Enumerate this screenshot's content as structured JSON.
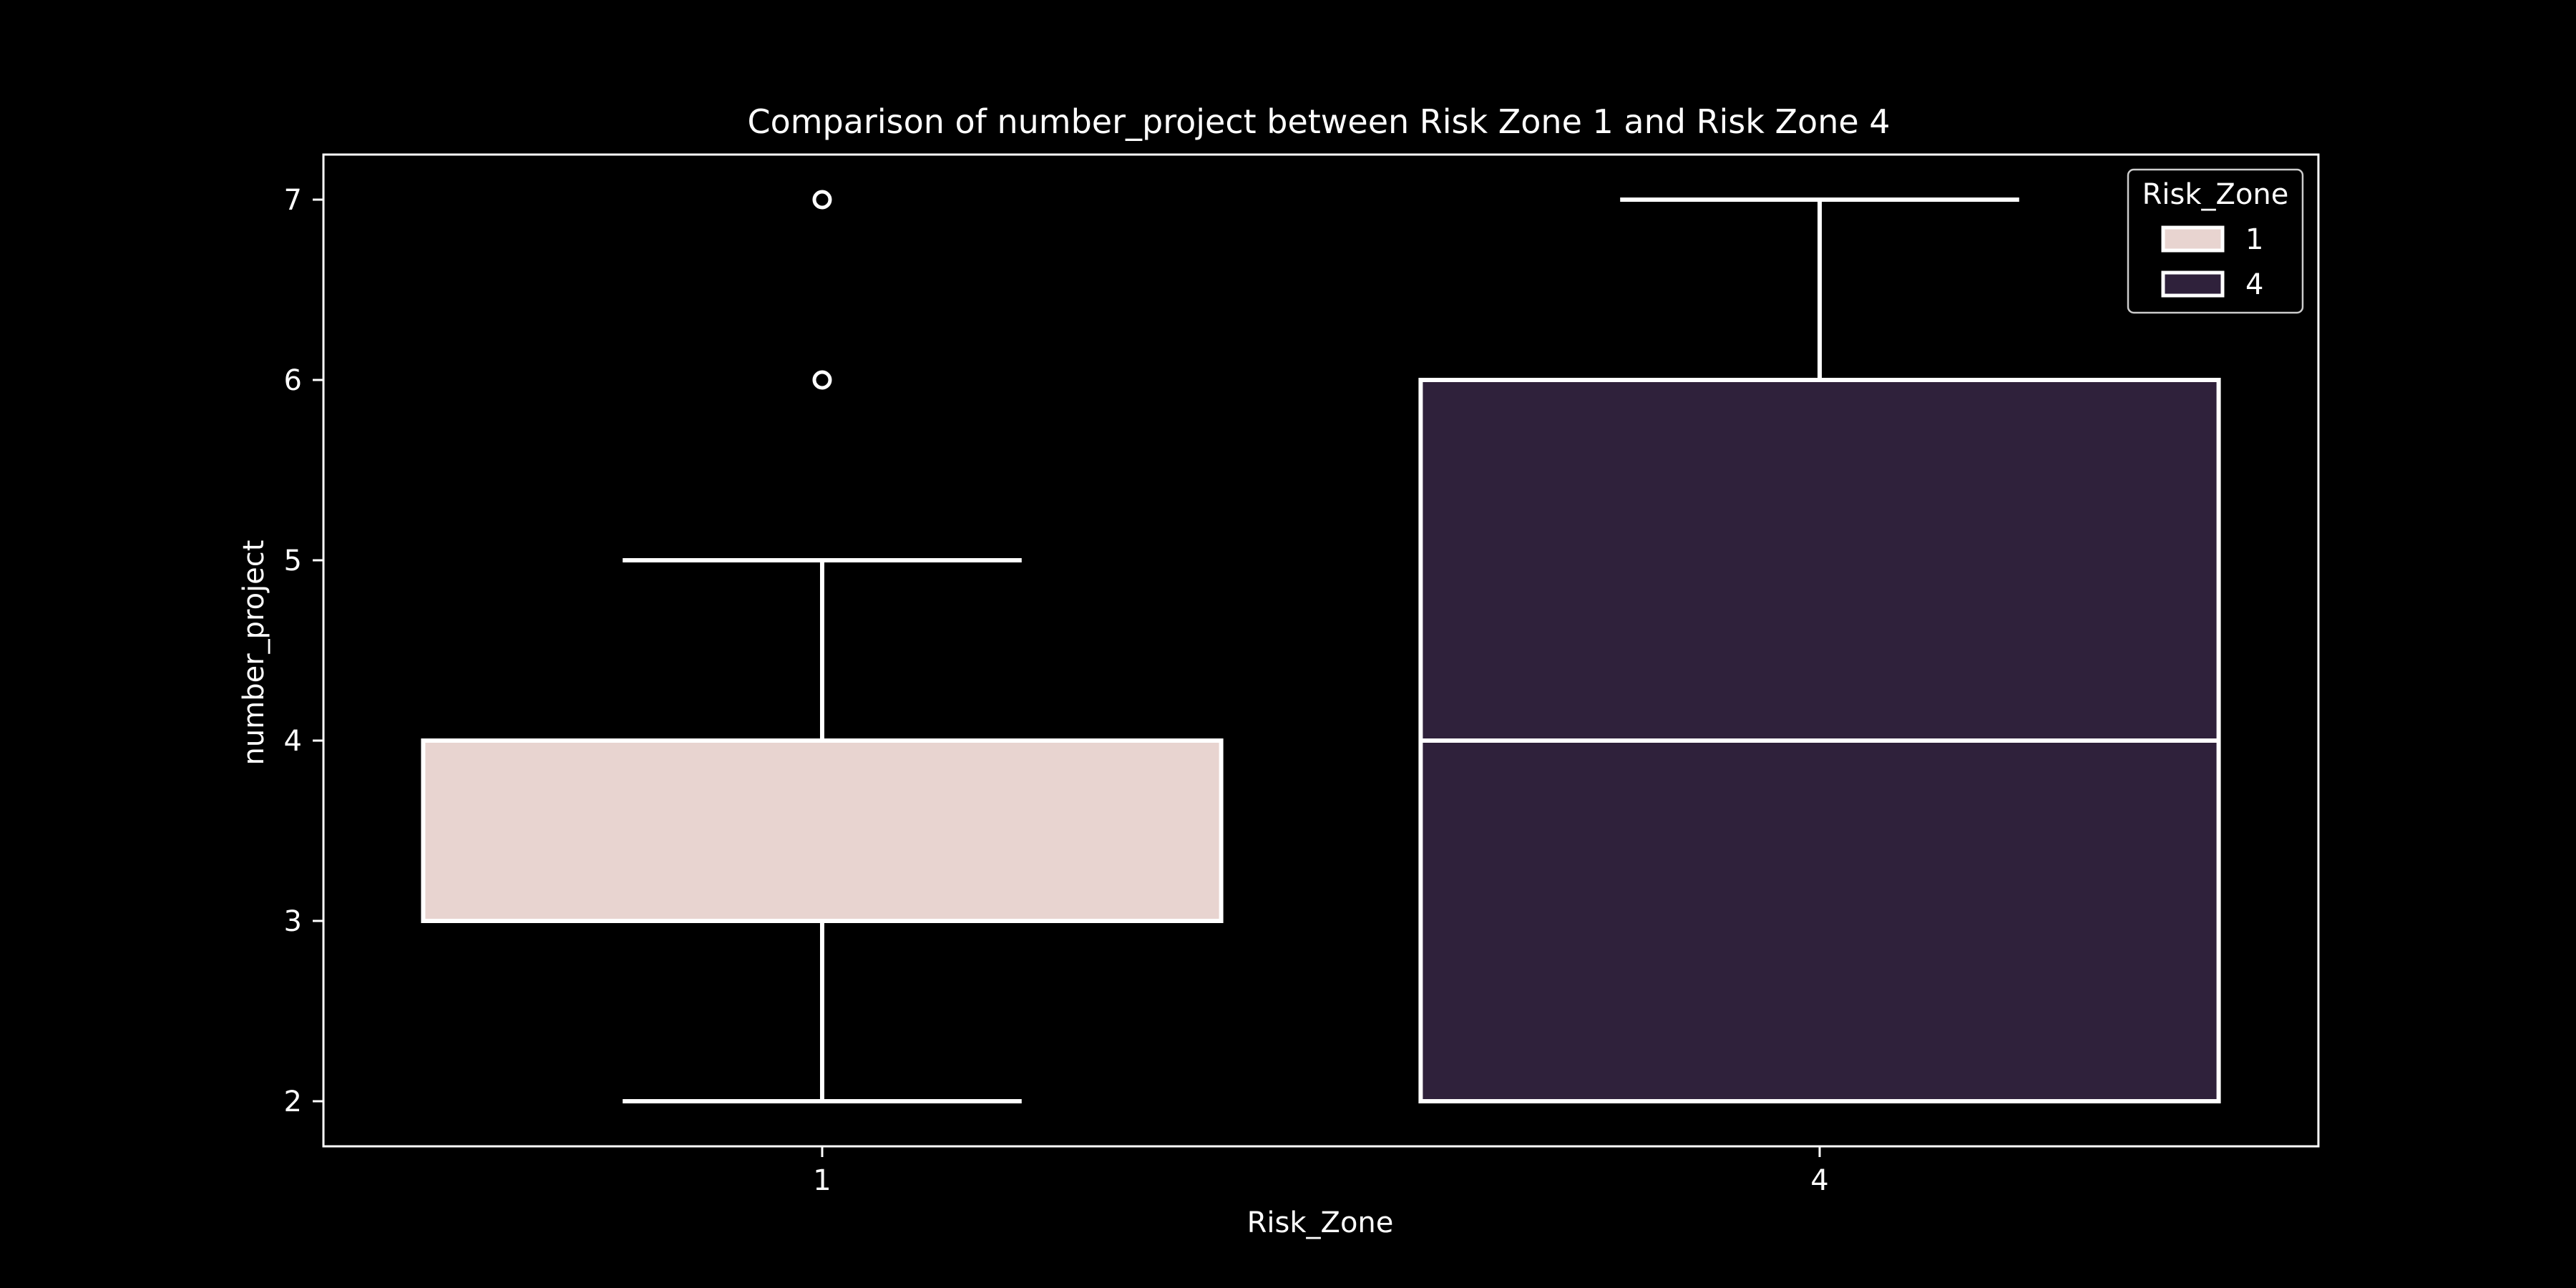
{
  "chart_data": {
    "type": "box",
    "title": "Comparison of number_project between Risk Zone 1 and Risk Zone 4",
    "xlabel": "Risk_Zone",
    "ylabel": "number_project",
    "categories": [
      "1",
      "4"
    ],
    "yticks": [
      "2",
      "3",
      "4",
      "5",
      "6",
      "7"
    ],
    "ylim": [
      1.75,
      7.25
    ],
    "grid": false,
    "legend": {
      "title": "Risk_Zone",
      "placement": "top-right",
      "entries": [
        "1",
        "4"
      ]
    },
    "boxes": [
      {
        "category": "1",
        "whisker_low": 2,
        "q1": 3,
        "median": 3,
        "q3": 4,
        "whisker_high": 5,
        "outliers": [
          6,
          7
        ],
        "color": "#e8d4d0"
      },
      {
        "category": "4",
        "whisker_low": 2,
        "q1": 2,
        "median": 4,
        "q3": 6,
        "whisker_high": 7,
        "outliers": [],
        "color": "#2f213b"
      }
    ],
    "colors": {
      "background": "#000000",
      "line": "#ffffff"
    }
  }
}
